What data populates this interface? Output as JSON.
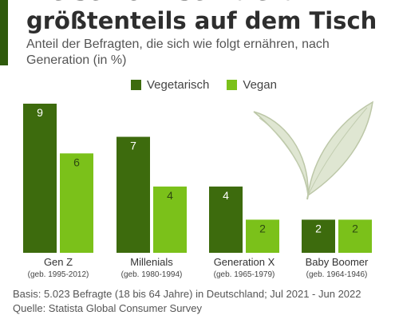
{
  "header": {
    "title_line1": "Fleisch & Fisch bleibt",
    "title_line2": "größtenteils auf dem Tisch",
    "subtitle": "Anteil der Befragten, die sich wie folgt ernähren, nach Generation (in %)"
  },
  "legend": [
    {
      "label": "Vegetarisch",
      "color": "#3d6b0d"
    },
    {
      "label": "Vegan",
      "color": "#7bc11a"
    }
  ],
  "chart_data": {
    "type": "bar",
    "title": "Fleisch & Fisch bleibt größtenteils auf dem Tisch",
    "subtitle": "Anteil der Befragten, die sich wie folgt ernähren, nach Generation (in %)",
    "categories": [
      "Gen Z",
      "Millenials",
      "Generation X",
      "Baby Boomer"
    ],
    "category_notes": [
      "(geb. 1995-2012)",
      "(geb. 1980-1994)",
      "(geb. 1965-1979)",
      "(geb. 1964-1946)"
    ],
    "series": [
      {
        "name": "Vegetarisch",
        "values": [
          9,
          7,
          4,
          2
        ],
        "color": "#3d6b0d"
      },
      {
        "name": "Vegan",
        "values": [
          6,
          4,
          2,
          2
        ],
        "color": "#7bc11a"
      }
    ],
    "ylim": [
      0,
      9
    ],
    "grid": false,
    "legend_position": "top",
    "data_labels": true
  },
  "footer": {
    "basis": "Basis: 5.023 Befragte (18 bis 64 Jahre) in Deutschland; Jul 2021 - Jun 2022",
    "source": "Quelle: Statista Global Consumer Survey"
  },
  "decoration": {
    "leaf_icon": "leaf-icon"
  }
}
